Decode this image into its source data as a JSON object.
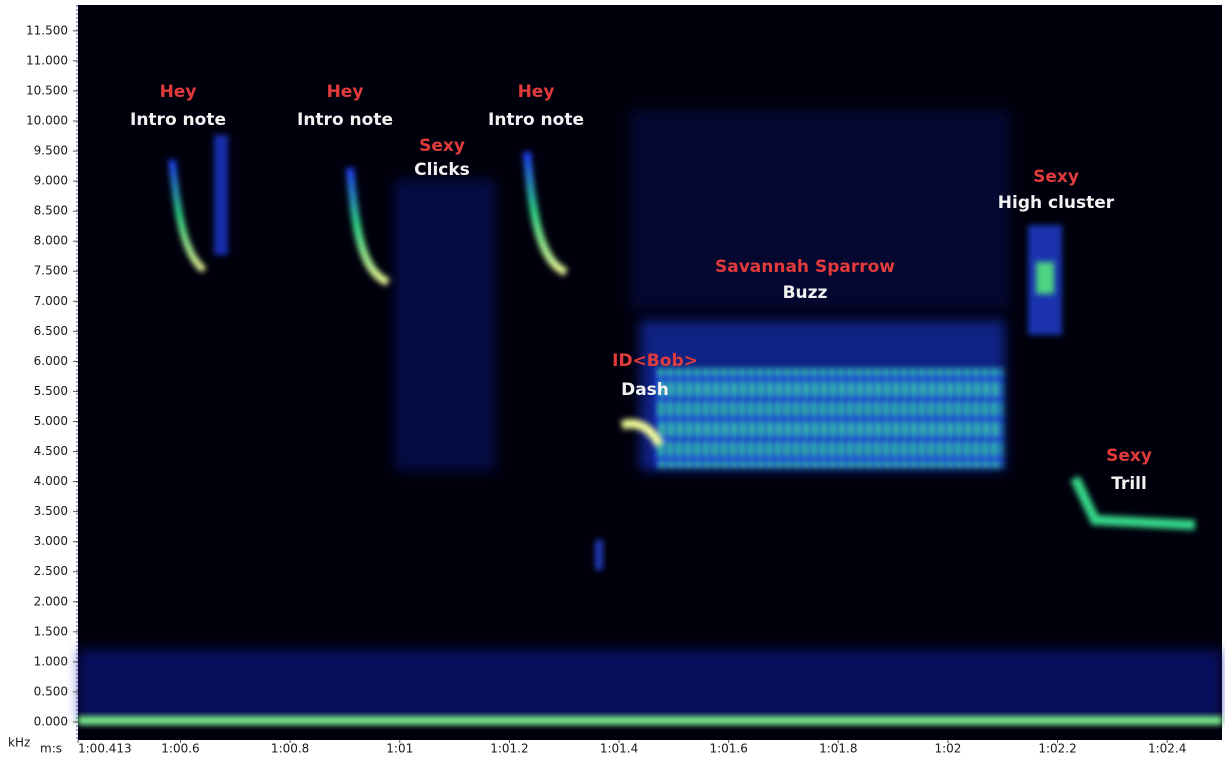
{
  "chart_data": {
    "type": "spectrogram",
    "y_label": "kHz",
    "x_label": "m:s",
    "ylim": [
      -0.3,
      11.93
    ],
    "yticks": [
      {
        "value": 0,
        "label": "0.000"
      },
      {
        "value": 0.5,
        "label": "0.500"
      },
      {
        "value": 1,
        "label": "1.000"
      },
      {
        "value": 1.5,
        "label": "1.500"
      },
      {
        "value": 2,
        "label": "2.000"
      },
      {
        "value": 2.5,
        "label": "2.500"
      },
      {
        "value": 3,
        "label": "3.000"
      },
      {
        "value": 3.5,
        "label": "3.500"
      },
      {
        "value": 4,
        "label": "4.000"
      },
      {
        "value": 4.5,
        "label": "4.500"
      },
      {
        "value": 5,
        "label": "5.000"
      },
      {
        "value": 5.5,
        "label": "5.500"
      },
      {
        "value": 6,
        "label": "6.000"
      },
      {
        "value": 6.5,
        "label": "6.500"
      },
      {
        "value": 7,
        "label": "7.000"
      },
      {
        "value": 7.5,
        "label": "7.500"
      },
      {
        "value": 8,
        "label": "8.000"
      },
      {
        "value": 8.5,
        "label": "8.500"
      },
      {
        "value": 9,
        "label": "9.000"
      },
      {
        "value": 9.5,
        "label": "9.500"
      },
      {
        "value": 10,
        "label": "10.000"
      },
      {
        "value": 10.5,
        "label": "10.500"
      },
      {
        "value": 11,
        "label": "11.000"
      },
      {
        "value": 11.5,
        "label": "11.500"
      }
    ],
    "xlim": [
      60.413,
      62.5
    ],
    "xticks": [
      {
        "value": 60.413,
        "label": "1:00.413"
      },
      {
        "value": 60.6,
        "label": "1:00.6"
      },
      {
        "value": 60.8,
        "label": "1:00.8"
      },
      {
        "value": 61,
        "label": "1:01"
      },
      {
        "value": 61.2,
        "label": "1:01.2"
      },
      {
        "value": 61.4,
        "label": "1:01.4"
      },
      {
        "value": 61.6,
        "label": "1:01.6"
      },
      {
        "value": 61.8,
        "label": "1:01.8"
      },
      {
        "value": 62,
        "label": "1:02"
      },
      {
        "value": 62.2,
        "label": "1:02.2"
      },
      {
        "value": 62.4,
        "label": "1:02.4"
      }
    ],
    "annotations": [
      {
        "label": "Hey",
        "text": "Intro note"
      },
      {
        "label": "Hey",
        "text": "Intro note"
      },
      {
        "label": "Hey",
        "text": "Intro note"
      },
      {
        "label": "Sexy",
        "text": "Clicks"
      },
      {
        "label": "Savannah Sparrow",
        "text": "Buzz"
      },
      {
        "label": "ID<Bob>",
        "text": "Dash"
      },
      {
        "label": "Sexy",
        "text": "High cluster"
      },
      {
        "label": "Sexy",
        "text": "Trill"
      }
    ]
  }
}
